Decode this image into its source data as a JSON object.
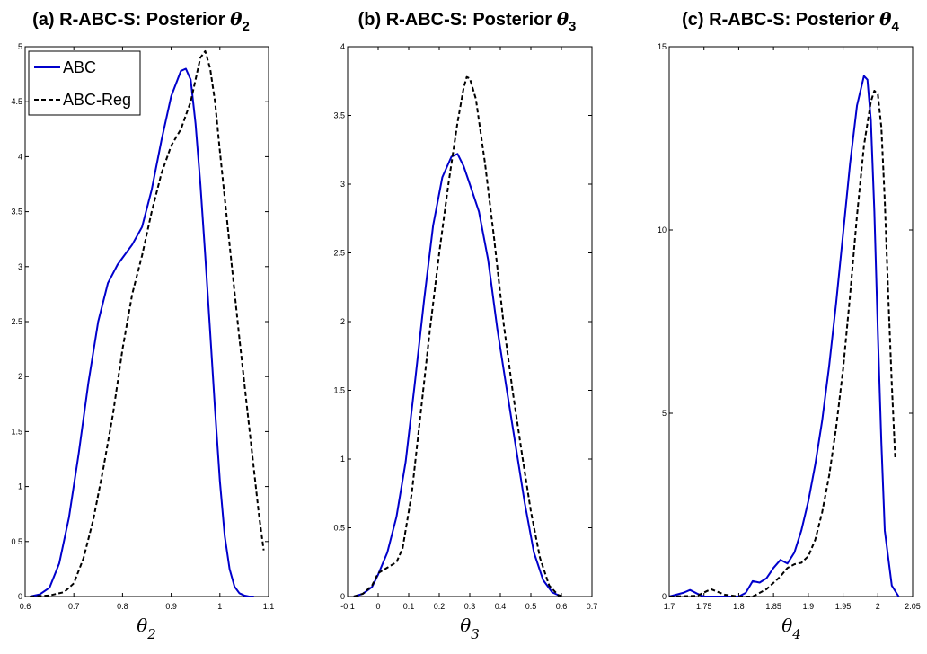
{
  "legend": {
    "abc_label": "ABC",
    "reg_label": "ABC-Reg"
  },
  "colors": {
    "abc": "#0000cc",
    "reg": "#000000"
  },
  "chart_data": [
    {
      "type": "line",
      "title_prefix": "(a) R-ABC-S: Posterior ",
      "title_symbol": "θ",
      "title_subscript": "2",
      "xlabel_symbol": "θ",
      "xlabel_subscript": "2",
      "xlim": [
        0.6,
        1.1
      ],
      "ylim": [
        0,
        5
      ],
      "xticks": [
        0.6,
        0.7,
        0.8,
        0.9,
        1,
        1.1
      ],
      "xtick_labels": [
        "0.6",
        "0.7",
        "0.8",
        "0.9",
        "1",
        "1.1"
      ],
      "yticks": [
        0,
        0.5,
        1,
        1.5,
        2,
        2.5,
        3,
        3.5,
        4,
        4.5,
        5
      ],
      "ytick_labels": [
        "0",
        "0.5",
        "1",
        "1.5",
        "2",
        "2.5",
        "3",
        "3.5",
        "4",
        "4.5",
        "5"
      ],
      "legend": "top-left",
      "series": [
        {
          "name": "ABC",
          "style": "solid",
          "x": [
            0.61,
            0.63,
            0.65,
            0.67,
            0.69,
            0.71,
            0.73,
            0.75,
            0.77,
            0.79,
            0.8,
            0.82,
            0.84,
            0.86,
            0.88,
            0.9,
            0.92,
            0.93,
            0.94,
            0.95,
            0.96,
            0.97,
            0.98,
            0.99,
            1.0,
            1.01,
            1.02,
            1.03,
            1.04,
            1.05,
            1.06,
            1.07
          ],
          "y": [
            0,
            0.02,
            0.08,
            0.3,
            0.72,
            1.3,
            1.95,
            2.5,
            2.85,
            3.02,
            3.08,
            3.2,
            3.36,
            3.7,
            4.15,
            4.55,
            4.78,
            4.8,
            4.7,
            4.3,
            3.75,
            3.1,
            2.4,
            1.7,
            1.05,
            0.55,
            0.25,
            0.09,
            0.03,
            0.01,
            0,
            0
          ]
        },
        {
          "name": "ABC-Reg",
          "style": "dashed",
          "x": [
            0.61,
            0.65,
            0.68,
            0.7,
            0.72,
            0.74,
            0.76,
            0.78,
            0.8,
            0.82,
            0.84,
            0.86,
            0.88,
            0.9,
            0.92,
            0.94,
            0.95,
            0.96,
            0.97,
            0.98,
            0.99,
            1.0,
            1.02,
            1.04,
            1.06,
            1.08,
            1.09
          ],
          "y": [
            0,
            0.01,
            0.04,
            0.12,
            0.35,
            0.7,
            1.15,
            1.65,
            2.25,
            2.75,
            3.1,
            3.5,
            3.85,
            4.1,
            4.25,
            4.5,
            4.7,
            4.9,
            4.96,
            4.8,
            4.5,
            4.05,
            3.2,
            2.35,
            1.55,
            0.75,
            0.42
          ]
        }
      ]
    },
    {
      "type": "line",
      "title_prefix": "(b) R-ABC-S: Posterior ",
      "title_symbol": "θ",
      "title_subscript": "3",
      "xlabel_symbol": "θ",
      "xlabel_subscript": "3",
      "xlim": [
        -0.1,
        0.7
      ],
      "ylim": [
        0,
        4
      ],
      "xticks": [
        -0.1,
        0,
        0.1,
        0.2,
        0.3,
        0.4,
        0.5,
        0.6,
        0.7
      ],
      "xtick_labels": [
        "-0.1",
        "0",
        "0.1",
        "0.2",
        "0.3",
        "0.4",
        "0.5",
        "0.6",
        "0.7"
      ],
      "yticks": [
        0,
        0.5,
        1,
        1.5,
        2,
        2.5,
        3,
        3.5,
        4
      ],
      "ytick_labels": [
        "0",
        "0.5",
        "1",
        "1.5",
        "2",
        "2.5",
        "3",
        "3.5",
        "4"
      ],
      "series": [
        {
          "name": "ABC",
          "style": "solid",
          "x": [
            -0.08,
            -0.05,
            -0.02,
            0.0,
            0.03,
            0.06,
            0.09,
            0.12,
            0.15,
            0.18,
            0.21,
            0.24,
            0.26,
            0.28,
            0.3,
            0.33,
            0.36,
            0.39,
            0.42,
            0.45,
            0.48,
            0.51,
            0.54,
            0.57,
            0.6
          ],
          "y": [
            0,
            0.02,
            0.07,
            0.16,
            0.32,
            0.58,
            0.98,
            1.55,
            2.15,
            2.7,
            3.05,
            3.2,
            3.22,
            3.13,
            3.0,
            2.8,
            2.45,
            1.95,
            1.52,
            1.1,
            0.68,
            0.32,
            0.12,
            0.03,
            0
          ]
        },
        {
          "name": "ABC-Reg",
          "style": "dashed",
          "x": [
            -0.08,
            -0.05,
            -0.02,
            0.0,
            0.03,
            0.06,
            0.08,
            0.11,
            0.14,
            0.17,
            0.2,
            0.23,
            0.26,
            0.28,
            0.29,
            0.3,
            0.32,
            0.35,
            0.38,
            0.41,
            0.44,
            0.47,
            0.5,
            0.53,
            0.56,
            0.59,
            0.61
          ],
          "y": [
            0,
            0.02,
            0.08,
            0.17,
            0.21,
            0.25,
            0.35,
            0.75,
            1.35,
            1.95,
            2.5,
            3.0,
            3.45,
            3.7,
            3.78,
            3.77,
            3.62,
            3.15,
            2.6,
            2.0,
            1.5,
            1.05,
            0.62,
            0.28,
            0.08,
            0.01,
            0
          ]
        }
      ]
    },
    {
      "type": "line",
      "title_prefix": "(c) R-ABC-S: Posterior ",
      "title_symbol": "θ",
      "title_subscript": "4",
      "xlabel_symbol": "θ",
      "xlabel_subscript": "4",
      "xlim": [
        1.7,
        2.05
      ],
      "ylim": [
        0,
        15
      ],
      "xticks": [
        1.7,
        1.75,
        1.8,
        1.85,
        1.9,
        1.95,
        2,
        2.05
      ],
      "xtick_labels": [
        "1.7",
        "1.75",
        "1.8",
        "1.85",
        "1.9",
        "1.95",
        "2",
        "2.05"
      ],
      "yticks": [
        0,
        5,
        10,
        15
      ],
      "ytick_labels": [
        "0",
        "5",
        "10",
        "15"
      ],
      "series": [
        {
          "name": "ABC",
          "style": "solid",
          "x": [
            1.7,
            1.72,
            1.73,
            1.74,
            1.75,
            1.78,
            1.8,
            1.81,
            1.82,
            1.83,
            1.84,
            1.85,
            1.86,
            1.87,
            1.88,
            1.89,
            1.9,
            1.91,
            1.92,
            1.93,
            1.94,
            1.95,
            1.96,
            1.97,
            1.98,
            1.985,
            1.99,
            1.995,
            2.0,
            2.005,
            2.01,
            2.02,
            2.03
          ],
          "y": [
            0,
            0.1,
            0.18,
            0.08,
            0,
            0,
            0,
            0.1,
            0.42,
            0.38,
            0.5,
            0.78,
            1.0,
            0.9,
            1.2,
            1.8,
            2.6,
            3.6,
            4.8,
            6.3,
            8.0,
            9.9,
            11.8,
            13.4,
            14.2,
            14.1,
            13.0,
            10.5,
            7.2,
            4.2,
            1.8,
            0.3,
            0
          ]
        },
        {
          "name": "ABC-Reg",
          "style": "dashed",
          "x": [
            1.7,
            1.74,
            1.76,
            1.78,
            1.8,
            1.82,
            1.84,
            1.86,
            1.87,
            1.88,
            1.89,
            1.9,
            1.91,
            1.92,
            1.93,
            1.94,
            1.95,
            1.96,
            1.97,
            1.98,
            1.99,
            1.995,
            2.0,
            2.005,
            2.01,
            2.015,
            2.02,
            2.025
          ],
          "y": [
            0,
            0.02,
            0.2,
            0.05,
            0,
            0,
            0.2,
            0.55,
            0.78,
            0.88,
            0.92,
            1.1,
            1.55,
            2.3,
            3.3,
            4.6,
            6.2,
            8.2,
            10.4,
            12.3,
            13.5,
            13.8,
            13.7,
            12.8,
            10.8,
            8.2,
            5.8,
            3.8
          ]
        }
      ]
    }
  ]
}
